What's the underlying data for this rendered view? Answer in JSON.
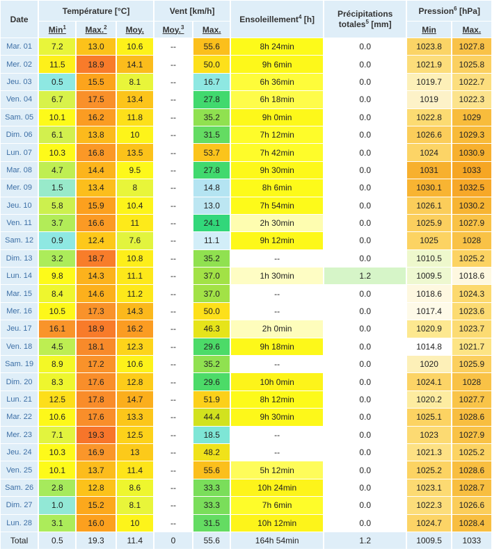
{
  "headers": {
    "date": "Date",
    "temperature": "Température [°C]",
    "vent": "Vent [km/h]",
    "ensoleillement": "Ensoleillement",
    "ensoleillement_sup": "4",
    "ensoleillement_unit": " [h]",
    "precip_line1": "Précipitations",
    "precip_line2": "totales",
    "precip_sup": "5",
    "precip_unit": " [mm]",
    "pression": "Pression",
    "pression_sup": "6",
    "pression_unit": " [hPa]",
    "t_min": "Min",
    "t_min_sup": "1",
    "t_max": "Max.",
    "t_max_sup": "2",
    "t_moy": "Moy.",
    "v_moy": "Moy.",
    "v_moy_sup": "3",
    "v_max": "Max.",
    "p_min": "Min",
    "p_max": "Max."
  },
  "colors": {
    "header_bg": "#dfeef8",
    "date_text": "#3b6ea5"
  },
  "rows": [
    {
      "date": "Mar. 01",
      "tmin": "7.2",
      "tmax": "13.0",
      "tmoy": "10.6",
      "vmoy": "--",
      "vmax": "55.6",
      "sun": "8h 24min",
      "precip": "0.0",
      "pmin": "1023.8",
      "pmax": "1027.8",
      "c": [
        "#e8f53a",
        "#fcc21a",
        "#fdf21a",
        "#ffffff",
        "#fbbf1c",
        "#fdfa1a",
        "#ffffff",
        "#fbd466",
        "#f9c248"
      ]
    },
    {
      "date": "Mer. 02",
      "tmin": "11.5",
      "tmax": "18.9",
      "tmoy": "14.1",
      "vmoy": "--",
      "vmax": "50.0",
      "sun": "9h 6min",
      "precip": "0.0",
      "pmin": "1021.9",
      "pmax": "1025.8",
      "c": [
        "#fdf01a",
        "#f87b2a",
        "#fbbc1c",
        "#ffffff",
        "#fde01a",
        "#fdf81a",
        "#ffffff",
        "#fcdd7a",
        "#fbd060"
      ]
    },
    {
      "date": "Jeu. 03",
      "tmin": "0.5",
      "tmax": "15.5",
      "tmoy": "8.1",
      "vmoy": "--",
      "vmax": "16.7",
      "sun": "6h 36min",
      "precip": "0.0",
      "pmin": "1019.7",
      "pmax": "1022.7",
      "c": [
        "#8ee8e2",
        "#fca41c",
        "#e8f53a",
        "#ffffff",
        "#8ee8e2",
        "#fefc3a",
        "#ffffff",
        "#fdf0b8",
        "#fcde7e"
      ]
    },
    {
      "date": "Ven. 04",
      "tmin": "6.7",
      "tmax": "17.5",
      "tmoy": "13.4",
      "vmoy": "--",
      "vmax": "27.8",
      "sun": "6h 18min",
      "precip": "0.0",
      "pmin": "1019",
      "pmax": "1022.3",
      "c": [
        "#d8f24a",
        "#f9902a",
        "#fcc41a",
        "#ffffff",
        "#41d96e",
        "#fefc4a",
        "#ffffff",
        "#fdf2c8",
        "#fce38c"
      ]
    },
    {
      "date": "Sam. 05",
      "tmin": "10.1",
      "tmax": "16.2",
      "tmoy": "11.8",
      "vmoy": "--",
      "vmax": "35.2",
      "sun": "9h 0min",
      "precip": "0.0",
      "pmin": "1022.8",
      "pmax": "1029",
      "c": [
        "#fdfa1a",
        "#fb9c22",
        "#fde01a",
        "#ffffff",
        "#90e150",
        "#fdf81a",
        "#ffffff",
        "#fcdb72",
        "#f8bc3c"
      ]
    },
    {
      "date": "Dim. 06",
      "tmin": "6.1",
      "tmax": "13.8",
      "tmoy": "10",
      "vmoy": "--",
      "vmax": "31.5",
      "sun": "7h 12min",
      "precip": "0.0",
      "pmin": "1026.6",
      "pmax": "1029.3",
      "c": [
        "#d2f04e",
        "#fcba1c",
        "#fdf41a",
        "#ffffff",
        "#64dc62",
        "#fefc2a",
        "#ffffff",
        "#fbcd5a",
        "#f8ba38"
      ]
    },
    {
      "date": "Lun. 07",
      "tmin": "10.3",
      "tmax": "16.8",
      "tmoy": "13.5",
      "vmoy": "--",
      "vmax": "53.7",
      "sun": "7h 42min",
      "precip": "0.0",
      "pmin": "1024",
      "pmax": "1030.9",
      "c": [
        "#fdfa1a",
        "#fb9826",
        "#fcc21a",
        "#ffffff",
        "#fbc41c",
        "#fefc2a",
        "#ffffff",
        "#fcd466",
        "#f7b02e"
      ]
    },
    {
      "date": "Mar. 08",
      "tmin": "4.7",
      "tmax": "14.4",
      "tmoy": "9.5",
      "vmoy": "--",
      "vmax": "27.8",
      "sun": "9h 30min",
      "precip": "0.0",
      "pmin": "1031",
      "pmax": "1033",
      "c": [
        "#bfee52",
        "#fcb41c",
        "#fdf81a",
        "#ffffff",
        "#41d96e",
        "#fdf81a",
        "#ffffff",
        "#f7b02e",
        "#f6a624"
      ]
    },
    {
      "date": "Mer. 09",
      "tmin": "1.5",
      "tmax": "13.4",
      "tmoy": "8",
      "vmoy": "--",
      "vmax": "14.8",
      "sun": "8h 6min",
      "precip": "0.0",
      "pmin": "1030.1",
      "pmax": "1032.5",
      "c": [
        "#98eaca",
        "#fcbe1c",
        "#e8f53a",
        "#ffffff",
        "#b4e4f2",
        "#fdfa1a",
        "#ffffff",
        "#f8b432",
        "#f7a828"
      ]
    },
    {
      "date": "Jeu. 10",
      "tmin": "5.8",
      "tmax": "15.9",
      "tmoy": "10.4",
      "vmoy": "--",
      "vmax": "13.0",
      "sun": "7h 54min",
      "precip": "0.0",
      "pmin": "1026.1",
      "pmax": "1030.2",
      "c": [
        "#ccf04e",
        "#fca01e",
        "#fdf41a",
        "#ffffff",
        "#bce6f2",
        "#fdfa1a",
        "#ffffff",
        "#fbcd5a",
        "#f7b432"
      ]
    },
    {
      "date": "Ven. 11",
      "tmin": "3.7",
      "tmax": "16.6",
      "tmoy": "11",
      "vmoy": "--",
      "vmax": "24.1",
      "sun": "2h 30min",
      "precip": "0.0",
      "pmin": "1025.9",
      "pmax": "1027.9",
      "c": [
        "#b2ec58",
        "#fb9a24",
        "#fdea1a",
        "#ffffff",
        "#32d77a",
        "#fefdb0",
        "#ffffff",
        "#fbcf5e",
        "#f9c246"
      ]
    },
    {
      "date": "Sam. 12",
      "tmin": "0.9",
      "tmax": "12.4",
      "tmoy": "7.6",
      "vmoy": "--",
      "vmax": "11.1",
      "sun": "9h 12min",
      "precip": "0.0",
      "pmin": "1025",
      "pmax": "1028",
      "c": [
        "#8ee8e2",
        "#fdc81a",
        "#e2f43e",
        "#ffffff",
        "#d2eef8",
        "#fdf81a",
        "#ffffff",
        "#fcd362",
        "#f9c246"
      ]
    },
    {
      "date": "Dim. 13",
      "tmin": "3.2",
      "tmax": "18.7",
      "tmoy": "10.8",
      "vmoy": "--",
      "vmax": "35.2",
      "sun": "--",
      "precip": "0.0",
      "pmin": "1010.5",
      "pmax": "1025.2",
      "c": [
        "#acec5a",
        "#f87d2a",
        "#fdee1a",
        "#ffffff",
        "#90e150",
        "#ffffff",
        "#ffffff",
        "#eef8cc",
        "#fcd362"
      ]
    },
    {
      "date": "Lun. 14",
      "tmin": "9.8",
      "tmax": "14.3",
      "tmoy": "11.1",
      "vmoy": "--",
      "vmax": "37.0",
      "sun": "1h 30min",
      "precip": "1.2",
      "pmin": "1009.5",
      "pmax": "1018.6",
      "c": [
        "#fdfa1a",
        "#fcb21c",
        "#fde81a",
        "#ffffff",
        "#a2e246",
        "#fefdc4",
        "#d6f5c8",
        "#eef8d0",
        "#fef8e0"
      ]
    },
    {
      "date": "Mar. 15",
      "tmin": "8.4",
      "tmax": "14.6",
      "tmoy": "11.2",
      "vmoy": "--",
      "vmax": "37.0",
      "sun": "--",
      "precip": "0.0",
      "pmin": "1018.6",
      "pmax": "1024.3",
      "c": [
        "#eef62e",
        "#fcb01c",
        "#fde81a",
        "#ffffff",
        "#a2e246",
        "#ffffff",
        "#ffffff",
        "#fef8e0",
        "#fcd96e"
      ]
    },
    {
      "date": "Mer. 16",
      "tmin": "10.5",
      "tmax": "17.3",
      "tmoy": "14.3",
      "vmoy": "--",
      "vmax": "50.0",
      "sun": "--",
      "precip": "0.0",
      "pmin": "1017.4",
      "pmax": "1023.6",
      "c": [
        "#fdf81a",
        "#f9922a",
        "#fbb81c",
        "#ffffff",
        "#fde01a",
        "#ffffff",
        "#ffffff",
        "#fefae8",
        "#fcdb72"
      ]
    },
    {
      "date": "Jeu. 17",
      "tmin": "16.1",
      "tmax": "18.9",
      "tmoy": "16.2",
      "vmoy": "--",
      "vmax": "46.3",
      "sun": "2h 0min",
      "precip": "0.0",
      "pmin": "1020.9",
      "pmax": "1023.7",
      "c": [
        "#f9942a",
        "#f87b2a",
        "#fb9c22",
        "#ffffff",
        "#e6e41a",
        "#fefdbc",
        "#ffffff",
        "#fde890",
        "#fcdb72"
      ]
    },
    {
      "date": "Ven. 18",
      "tmin": "4.5",
      "tmax": "18.1",
      "tmoy": "12.3",
      "vmoy": "--",
      "vmax": "29.6",
      "sun": "9h 18min",
      "precip": "0.0",
      "pmin": "1014.8",
      "pmax": "1021.7",
      "c": [
        "#bdee52",
        "#f88a2a",
        "#fdd41a",
        "#ffffff",
        "#4cdb68",
        "#fdf81a",
        "#ffffff",
        "#ffffff",
        "#fde484"
      ]
    },
    {
      "date": "Sam. 19",
      "tmin": "8.9",
      "tmax": "17.2",
      "tmoy": "10.6",
      "vmoy": "--",
      "vmax": "35.2",
      "sun": "--",
      "precip": "0.0",
      "pmin": "1020",
      "pmax": "1025.9",
      "c": [
        "#f3f826",
        "#f9922a",
        "#fdf21a",
        "#ffffff",
        "#90e150",
        "#ffffff",
        "#ffffff",
        "#fdf0b8",
        "#fbcf5e"
      ]
    },
    {
      "date": "Dim. 20",
      "tmin": "8.3",
      "tmax": "17.6",
      "tmoy": "12.8",
      "vmoy": "--",
      "vmax": "29.6",
      "sun": "10h 0min",
      "precip": "0.0",
      "pmin": "1024.1",
      "pmax": "1028",
      "c": [
        "#eef62e",
        "#f98e2a",
        "#fdcc1a",
        "#ffffff",
        "#4cdb68",
        "#fdf41a",
        "#ffffff",
        "#fcd466",
        "#f9c246"
      ]
    },
    {
      "date": "Lun. 21",
      "tmin": "12.5",
      "tmax": "17.8",
      "tmoy": "14.7",
      "vmoy": "--",
      "vmax": "51.9",
      "sun": "8h 12min",
      "precip": "0.0",
      "pmin": "1020.2",
      "pmax": "1027.7",
      "c": [
        "#fdde1a",
        "#f98c2a",
        "#fbae1c",
        "#ffffff",
        "#fcd01a",
        "#fdfa1a",
        "#ffffff",
        "#fdeca0",
        "#f9c448"
      ]
    },
    {
      "date": "Mar. 22",
      "tmin": "10.6",
      "tmax": "17.6",
      "tmoy": "13.3",
      "vmoy": "--",
      "vmax": "44.4",
      "sun": "9h 30min",
      "precip": "0.0",
      "pmin": "1025.1",
      "pmax": "1028.6",
      "c": [
        "#fdf81a",
        "#f98e2a",
        "#fcc61a",
        "#ffffff",
        "#d2e21e",
        "#fdf81a",
        "#ffffff",
        "#fcd362",
        "#f8be40"
      ]
    },
    {
      "date": "Mer. 23",
      "tmin": "7.1",
      "tmax": "19.3",
      "tmoy": "12.5",
      "vmoy": "--",
      "vmax": "18.5",
      "sun": "--",
      "precip": "0.0",
      "pmin": "1023",
      "pmax": "1027.9",
      "c": [
        "#e2f43e",
        "#f7752a",
        "#fdd21a",
        "#ffffff",
        "#7ee6d6",
        "#ffffff",
        "#ffffff",
        "#fcda72",
        "#f9c246"
      ]
    },
    {
      "date": "Jeu. 24",
      "tmin": "10.3",
      "tmax": "16.9",
      "tmoy": "13",
      "vmoy": "--",
      "vmax": "48.2",
      "sun": "--",
      "precip": "0.0",
      "pmin": "1021.3",
      "pmax": "1025.2",
      "c": [
        "#fdfa1a",
        "#fa962a",
        "#fcca1a",
        "#ffffff",
        "#f0e21a",
        "#ffffff",
        "#ffffff",
        "#fde184",
        "#fcd362"
      ]
    },
    {
      "date": "Ven. 25",
      "tmin": "10.1",
      "tmax": "13.7",
      "tmoy": "11.4",
      "vmoy": "--",
      "vmax": "55.6",
      "sun": "5h 12min",
      "precip": "0.0",
      "pmin": "1025.2",
      "pmax": "1028.6",
      "c": [
        "#fdfa1a",
        "#fcbc1c",
        "#fde41a",
        "#ffffff",
        "#fbbf1c",
        "#fefc5a",
        "#ffffff",
        "#fcd362",
        "#f8be40"
      ]
    },
    {
      "date": "Sam. 26",
      "tmin": "2.8",
      "tmax": "12.8",
      "tmoy": "8.6",
      "vmoy": "--",
      "vmax": "33.3",
      "sun": "10h 24min",
      "precip": "0.0",
      "pmin": "1023.1",
      "pmax": "1028.7",
      "c": [
        "#a6ea5c",
        "#fcc21a",
        "#eef62e",
        "#ffffff",
        "#7ade5a",
        "#fdf41a",
        "#ffffff",
        "#fcda72",
        "#f8be40"
      ]
    },
    {
      "date": "Dim. 27",
      "tmin": "1.0",
      "tmax": "15.2",
      "tmoy": "8.1",
      "vmoy": "--",
      "vmax": "33.3",
      "sun": "7h 6min",
      "precip": "0.0",
      "pmin": "1022.3",
      "pmax": "1026.6",
      "c": [
        "#92e8d6",
        "#fca81c",
        "#e8f53a",
        "#ffffff",
        "#7ade5a",
        "#fefc2a",
        "#ffffff",
        "#fcdd7a",
        "#fbcd5a"
      ]
    },
    {
      "date": "Lun. 28",
      "tmin": "3.1",
      "tmax": "16.0",
      "tmoy": "10",
      "vmoy": "--",
      "vmax": "31.5",
      "sun": "10h 12min",
      "precip": "0.0",
      "pmin": "1024.7",
      "pmax": "1028.4",
      "c": [
        "#acec5a",
        "#fca01e",
        "#fdf41a",
        "#ffffff",
        "#64dc62",
        "#fdf41a",
        "#ffffff",
        "#fcd466",
        "#f8be40"
      ]
    }
  ],
  "totals": {
    "label": "Total",
    "tmin": "0.5",
    "tmax": "19.3",
    "tmoy": "11.4",
    "vmoy": "0",
    "vmax": "55.6",
    "sun": "164h 54min",
    "precip": "1.2",
    "pmin": "1009.5",
    "pmax": "1033"
  }
}
